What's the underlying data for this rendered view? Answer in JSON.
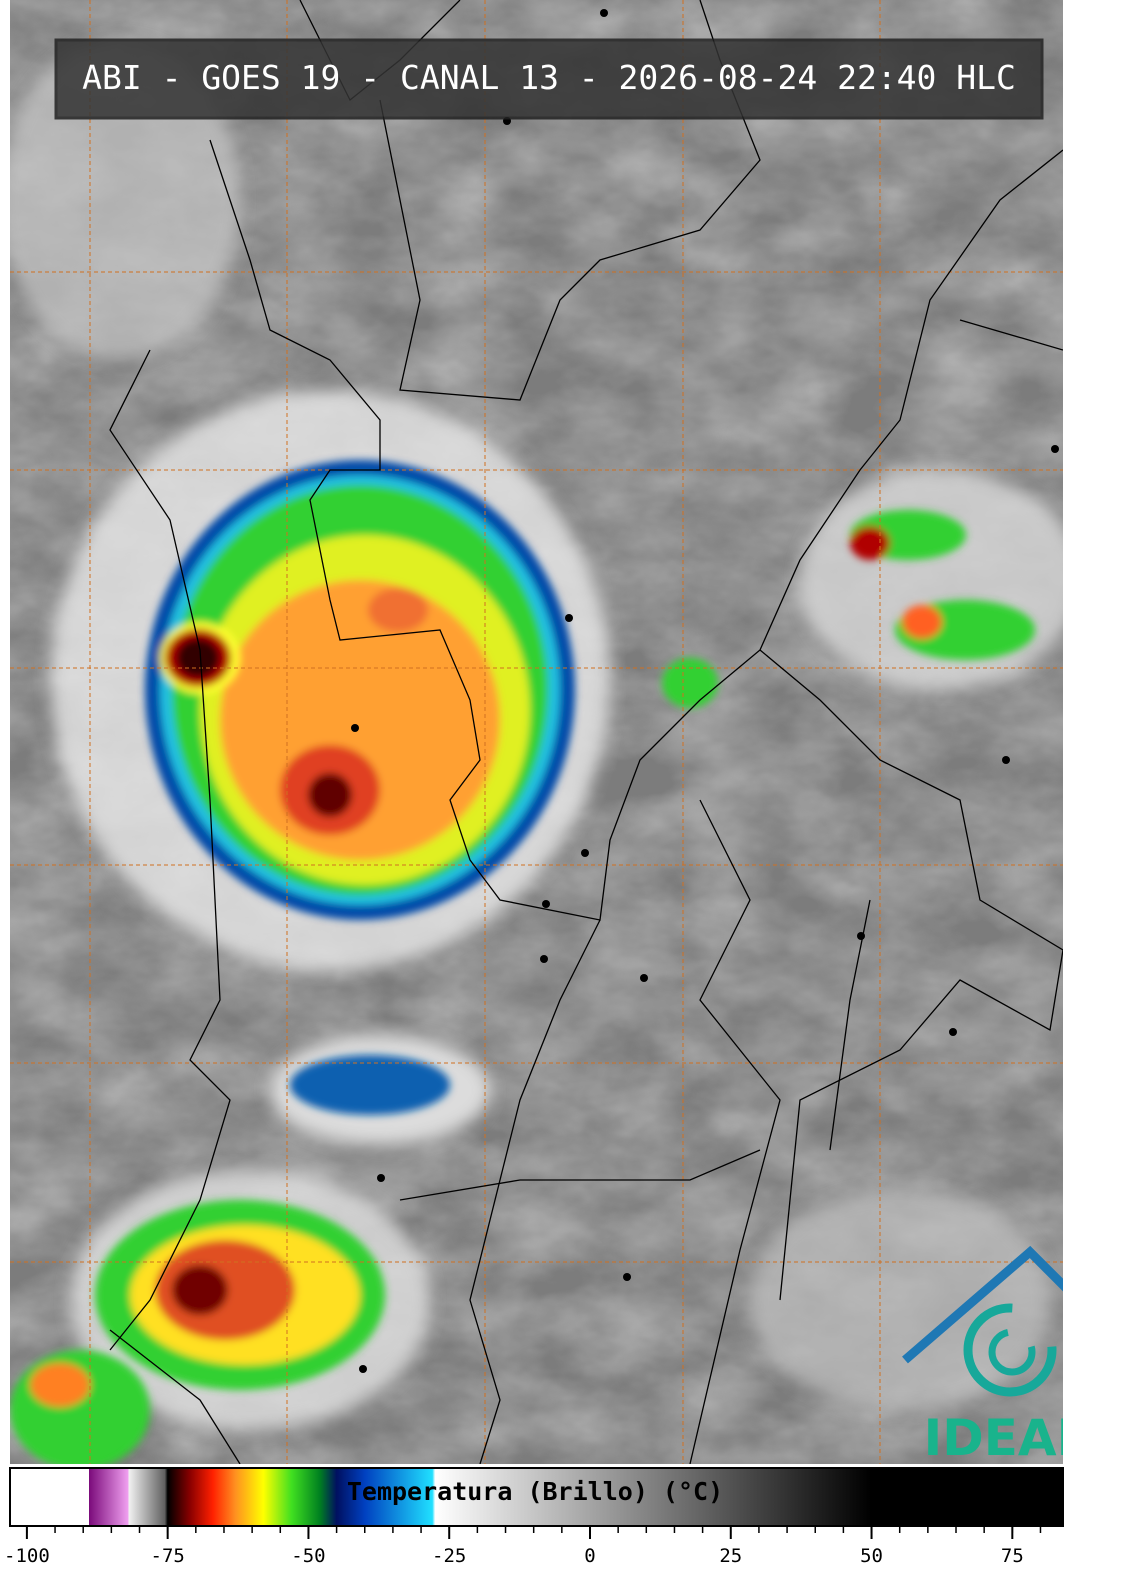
{
  "header": {
    "title": "ABI - GOES 19 - CANAL 13 - 2026-08-24 22:40 HLC"
  },
  "logo": {
    "text": "IDEAM"
  },
  "colorbar": {
    "label": "Temperatura (Brillo) (°C)",
    "range": [
      -103,
      84
    ],
    "ticks": [
      -100,
      -75,
      -50,
      -25,
      0,
      25,
      50,
      75
    ],
    "minor_ticks": [
      -100,
      -95,
      -90,
      -85,
      -80,
      -75,
      -70,
      -65,
      -60,
      -55,
      -50,
      -45,
      -40,
      -35,
      -30,
      -25,
      -20,
      -15,
      -10,
      -5,
      0,
      5,
      10,
      15,
      20,
      25,
      30,
      35,
      40,
      45,
      50,
      55,
      60,
      65,
      70,
      75,
      80
    ],
    "stops": [
      {
        "value": -103,
        "color": "#ffffff"
      },
      {
        "value": -89,
        "color": "#ffffff"
      },
      {
        "value": -89,
        "color": "#7a0a7a"
      },
      {
        "value": -82,
        "color": "#f0a0f0"
      },
      {
        "value": -82,
        "color": "#f4f4f4"
      },
      {
        "value": -75.5,
        "color": "#606060"
      },
      {
        "value": -75,
        "color": "#000000"
      },
      {
        "value": -71,
        "color": "#8a0000"
      },
      {
        "value": -67,
        "color": "#ff2000"
      },
      {
        "value": -63,
        "color": "#ff9020"
      },
      {
        "value": -58,
        "color": "#ffff00"
      },
      {
        "value": -53,
        "color": "#40e020"
      },
      {
        "value": -48,
        "color": "#008020"
      },
      {
        "value": -45,
        "color": "#001060"
      },
      {
        "value": -40,
        "color": "#0040c0"
      },
      {
        "value": -28,
        "color": "#20e0ff"
      },
      {
        "value": -27.5,
        "color": "#ffffff"
      },
      {
        "value": 50,
        "color": "#000000"
      },
      {
        "value": 84,
        "color": "#000000"
      }
    ]
  }
}
